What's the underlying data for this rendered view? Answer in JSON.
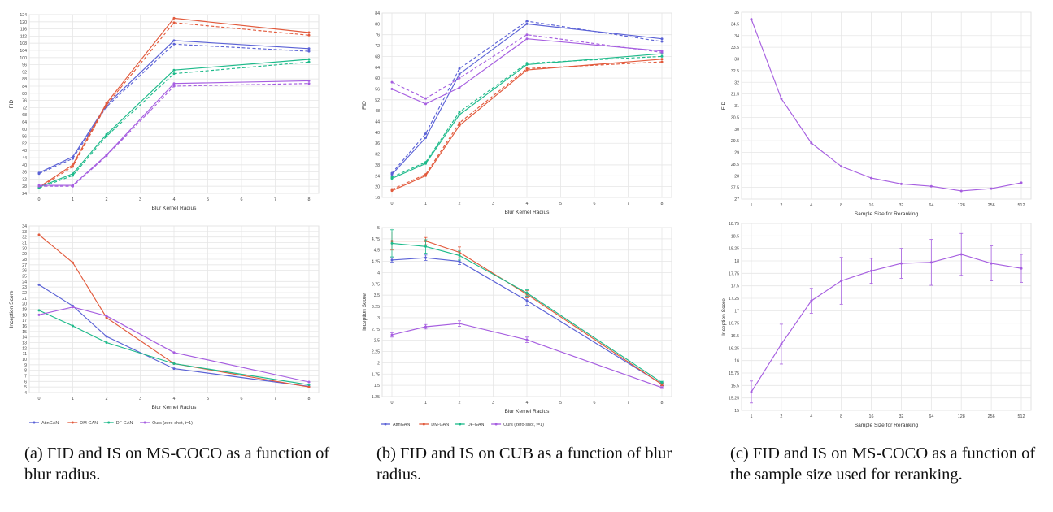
{
  "colors": {
    "AttnGAN": "#5b62d6",
    "DM-GAN": "#e25a3c",
    "DF-GAN": "#1dba8a",
    "Ours": "#a65ee0",
    "grid": "#e6e6e6",
    "axis": "#555555"
  },
  "legend": [
    "AttnGAN",
    "DM-GAN",
    "DF-GAN",
    "Ours (zero-shot, t=1)"
  ],
  "captions": {
    "a": "(a) FID and IS on MS-COCO as a function of blur radius.",
    "b": "(b) FID and IS on CUB as a function of blur radius.",
    "c": "(c) FID and IS on MS-COCO as a function of the sample size used for reranking."
  },
  "chart_data": [
    {
      "id": "a-fid",
      "type": "line",
      "title": "",
      "xlabel": "Blur Kernel Radius",
      "ylabel": "FID",
      "xlim": [
        0,
        8
      ],
      "ylim": [
        24,
        124
      ],
      "xticks": [
        0,
        1,
        2,
        3,
        4,
        5,
        6,
        7,
        8
      ],
      "yticks": [
        24,
        28,
        32,
        36,
        40,
        44,
        48,
        52,
        56,
        60,
        64,
        68,
        72,
        76,
        80,
        84,
        88,
        92,
        96,
        100,
        104,
        108,
        112,
        116,
        120,
        124
      ],
      "x": [
        0,
        1,
        2,
        4,
        8
      ],
      "series": [
        {
          "name": "AttnGAN",
          "values": [
            35.5,
            44.5,
            73.5,
            109.5,
            105.0
          ]
        },
        {
          "name": "AttnGAN",
          "dashed": true,
          "values": [
            35.0,
            43.5,
            72.5,
            107.5,
            103.5
          ]
        },
        {
          "name": "DM-GAN",
          "values": [
            27.5,
            40.0,
            74.5,
            122.0,
            114.0
          ]
        },
        {
          "name": "DM-GAN",
          "dashed": true,
          "values": [
            27.0,
            39.0,
            73.5,
            119.5,
            112.5
          ]
        },
        {
          "name": "DF-GAN",
          "values": [
            27.5,
            35.0,
            57.0,
            93.0,
            99.0
          ]
        },
        {
          "name": "DF-GAN",
          "dashed": true,
          "values": [
            27.0,
            34.0,
            56.0,
            91.0,
            97.5
          ]
        },
        {
          "name": "Ours",
          "values": [
            28.5,
            28.5,
            45.5,
            85.5,
            87.0
          ]
        },
        {
          "name": "Ours",
          "dashed": true,
          "values": [
            28.0,
            28.0,
            45.0,
            84.0,
            85.5
          ]
        }
      ]
    },
    {
      "id": "a-is",
      "type": "line",
      "title": "",
      "xlabel": "Blur Kernel Radius",
      "ylabel": "Inception Score",
      "xlim": [
        0,
        8
      ],
      "ylim": [
        4,
        34
      ],
      "xticks": [
        0,
        1,
        2,
        3,
        4,
        5,
        6,
        7,
        8
      ],
      "yticks": [
        4,
        5,
        6,
        7,
        8,
        9,
        10,
        11,
        12,
        13,
        14,
        15,
        16,
        17,
        18,
        19,
        20,
        21,
        22,
        23,
        24,
        25,
        26,
        27,
        28,
        29,
        30,
        31,
        32,
        33,
        34
      ],
      "x": [
        0,
        1,
        2,
        4,
        8
      ],
      "series": [
        {
          "name": "AttnGAN",
          "values": [
            23.4,
            19.6,
            14.1,
            8.3,
            5.1
          ]
        },
        {
          "name": "DM-GAN",
          "values": [
            32.4,
            27.4,
            17.5,
            9.2,
            5.0
          ]
        },
        {
          "name": "DF-GAN",
          "values": [
            18.8,
            16.0,
            13.0,
            9.2,
            5.4
          ]
        },
        {
          "name": "Ours (zero-shot, t=1)",
          "values": [
            18.0,
            19.4,
            17.8,
            11.2,
            5.9
          ]
        }
      ]
    },
    {
      "id": "b-fid",
      "type": "line",
      "title": "",
      "xlabel": "Blur Kernel Radius",
      "ylabel": "FID",
      "xlim": [
        0,
        8
      ],
      "ylim": [
        16,
        84
      ],
      "xticks": [
        0,
        1,
        2,
        3,
        4,
        5,
        6,
        7,
        8
      ],
      "yticks": [
        16,
        20,
        24,
        28,
        32,
        36,
        40,
        44,
        48,
        52,
        56,
        60,
        64,
        68,
        72,
        76,
        80,
        84
      ],
      "x": [
        0,
        1,
        2,
        4,
        8
      ],
      "series": [
        {
          "name": "AttnGAN",
          "values": [
            24.5,
            38.0,
            61.5,
            80.0,
            74.5
          ]
        },
        {
          "name": "AttnGAN",
          "dashed": true,
          "values": [
            25.0,
            39.5,
            63.5,
            81.0,
            73.5
          ]
        },
        {
          "name": "DM-GAN",
          "values": [
            18.5,
            24.0,
            42.5,
            63.0,
            67.0
          ]
        },
        {
          "name": "DM-GAN",
          "dashed": true,
          "values": [
            19.0,
            24.5,
            43.5,
            63.5,
            66.0
          ]
        },
        {
          "name": "DF-GAN",
          "values": [
            23.0,
            28.5,
            46.5,
            65.0,
            69.0
          ]
        },
        {
          "name": "DF-GAN",
          "dashed": true,
          "values": [
            23.5,
            29.0,
            47.5,
            65.5,
            68.0
          ]
        },
        {
          "name": "Ours",
          "values": [
            56.0,
            50.5,
            56.5,
            74.5,
            70.0
          ]
        },
        {
          "name": "Ours",
          "dashed": true,
          "values": [
            58.5,
            52.5,
            60.0,
            76.0,
            69.5
          ]
        }
      ]
    },
    {
      "id": "b-is",
      "type": "line",
      "title": "",
      "xlabel": "Blur Kernel Radius",
      "ylabel": "Inception Score",
      "xlim": [
        0,
        8
      ],
      "ylim": [
        1.25,
        5
      ],
      "xticks": [
        0,
        1,
        2,
        3,
        4,
        5,
        6,
        7,
        8
      ],
      "yticks": [
        1.25,
        1.5,
        1.75,
        2,
        2.25,
        2.5,
        2.75,
        3,
        3.25,
        3.5,
        3.75,
        4,
        4.25,
        4.5,
        4.75,
        5
      ],
      "x": [
        0,
        1,
        2,
        4,
        8
      ],
      "series": [
        {
          "name": "AttnGAN",
          "values": [
            4.28,
            4.33,
            4.25,
            3.38,
            1.53
          ],
          "errors": [
            0.05,
            0.06,
            0.07,
            0.1,
            0.03
          ]
        },
        {
          "name": "DM-GAN",
          "values": [
            4.7,
            4.7,
            4.45,
            3.52,
            1.52
          ],
          "errors": [
            0.2,
            0.08,
            0.12,
            0.08,
            0.03
          ]
        },
        {
          "name": "DF-GAN",
          "values": [
            4.65,
            4.58,
            4.38,
            3.55,
            1.56
          ],
          "errors": [
            0.3,
            0.15,
            0.1,
            0.07,
            0.03
          ]
        },
        {
          "name": "Ours (zero-shot, t=1)",
          "values": [
            2.62,
            2.8,
            2.87,
            2.51,
            1.45
          ],
          "errors": [
            0.05,
            0.05,
            0.06,
            0.06,
            0.02
          ]
        }
      ]
    },
    {
      "id": "c-fid",
      "type": "line",
      "title": "",
      "xlabel": "Sample Size for Reranking",
      "ylabel": "FID",
      "ylim": [
        27,
        35
      ],
      "categories": [
        "1",
        "2",
        "4",
        "8",
        "16",
        "32",
        "64",
        "128",
        "256",
        "512"
      ],
      "yticks": [
        27,
        27.5,
        28,
        28.5,
        29,
        29.5,
        30,
        30.5,
        31,
        31.5,
        32,
        32.5,
        33,
        33.5,
        34,
        34.5,
        35
      ],
      "series": [
        {
          "name": "Ours",
          "values": [
            34.7,
            31.3,
            29.4,
            28.4,
            27.9,
            27.65,
            27.55,
            27.35,
            27.45,
            27.7
          ]
        }
      ]
    },
    {
      "id": "c-is",
      "type": "line",
      "title": "",
      "xlabel": "Sample Size for Reranking",
      "ylabel": "Inception Score",
      "ylim": [
        15,
        18.75
      ],
      "categories": [
        "1",
        "2",
        "4",
        "8",
        "16",
        "32",
        "64",
        "128",
        "256",
        "512"
      ],
      "yticks": [
        15,
        15.25,
        15.5,
        15.75,
        16,
        16.25,
        16.5,
        16.75,
        17,
        17.25,
        17.5,
        17.75,
        18,
        18.25,
        18.5,
        18.75
      ],
      "series": [
        {
          "name": "Ours",
          "values": [
            15.37,
            16.33,
            17.2,
            17.6,
            17.8,
            17.95,
            17.97,
            18.13,
            17.95,
            17.85
          ],
          "errors": [
            0.22,
            0.4,
            0.25,
            0.47,
            0.25,
            0.3,
            0.46,
            0.42,
            0.35,
            0.28
          ]
        }
      ]
    }
  ]
}
